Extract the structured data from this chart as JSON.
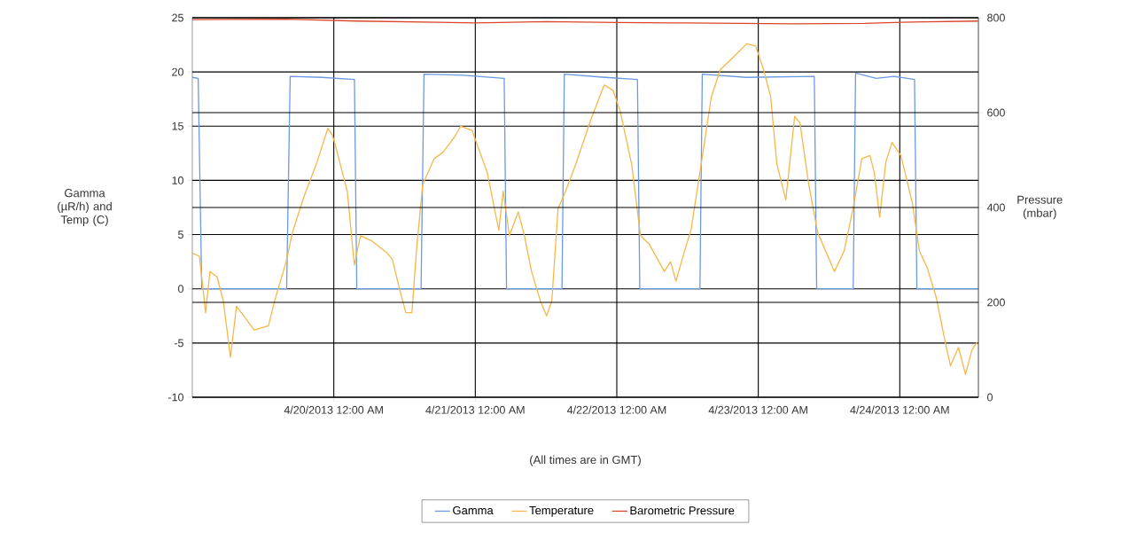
{
  "chart_data": {
    "type": "line",
    "xlabel": "(All times are in GMT)",
    "ylabel": "Gamma (µR/h) and Temp (C)",
    "y2label": "Pressure (mbar)",
    "xlim": [
      "2013-04-19T00:00",
      "2013-04-24T13:20"
    ],
    "xticks": [
      {
        "value": "2013-04-20",
        "label": "4/20/2013 12:00 AM"
      },
      {
        "value": "2013-04-21",
        "label": "4/21/2013 12:00 AM"
      },
      {
        "value": "2013-04-22",
        "label": "4/22/2013 12:00 AM"
      },
      {
        "value": "2013-04-23",
        "label": "4/23/2013 12:00 AM"
      },
      {
        "value": "2013-04-24",
        "label": "4/24/2013 12:00 AM"
      }
    ],
    "ylim": [
      -10,
      25
    ],
    "yticks": [
      -10,
      -5,
      0,
      5,
      10,
      15,
      20,
      25
    ],
    "y2lim": [
      0,
      800
    ],
    "y2ticks": [
      0,
      200,
      400,
      600,
      800
    ],
    "grid": true,
    "legend": "bottom",
    "series": [
      {
        "name": "Gamma",
        "color": "#6a9ae0",
        "x": [
          "2013-04-19T00:00",
          "2013-04-19T01:00",
          "2013-04-19T01:36",
          "2013-04-19T16:00",
          "2013-04-19T16:36",
          "2013-04-19T22:00",
          "2013-04-20T03:30",
          "2013-04-20T03:54",
          "2013-04-20T14:48",
          "2013-04-20T15:18",
          "2013-04-20T22:00",
          "2013-04-21T04:54",
          "2013-04-21T05:18",
          "2013-04-21T14:42",
          "2013-04-21T15:06",
          "2013-04-21T22:00",
          "2013-04-22T03:30",
          "2013-04-22T03:54",
          "2013-04-22T14:06",
          "2013-04-22T14:30",
          "2013-04-22T22:00",
          "2013-04-23T09:30",
          "2013-04-23T09:54",
          "2013-04-23T16:06",
          "2013-04-23T16:30",
          "2013-04-23T20:00",
          "2013-04-23T23:00",
          "2013-04-24T02:30",
          "2013-04-24T02:54",
          "2013-04-24T13:18"
        ],
        "values": [
          19.5,
          19.4,
          0,
          0,
          19.6,
          19.5,
          19.3,
          0,
          0,
          19.8,
          19.7,
          19.4,
          0,
          0,
          19.8,
          19.5,
          19.3,
          0,
          0,
          19.8,
          19.5,
          19.6,
          0,
          0,
          19.9,
          19.4,
          19.6,
          19.3,
          0,
          0
        ]
      },
      {
        "name": "Temperature",
        "color": "#f6b74a",
        "x": [
          "2013-04-19T00:00",
          "2013-04-19T01:12",
          "2013-04-19T02:15",
          "2013-04-19T03:00",
          "2013-04-19T04:12",
          "2013-04-19T05:15",
          "2013-04-19T06:28",
          "2013-04-19T07:30",
          "2013-04-19T09:00",
          "2013-04-19T10:30",
          "2013-04-19T12:55",
          "2013-04-19T13:58",
          "2013-04-19T15:55",
          "2013-04-19T16:59",
          "2013-04-19T18:56",
          "2013-04-19T21:02",
          "2013-04-19T22:59",
          "2013-04-19T23:44",
          "2013-04-20T00:11",
          "2013-04-20T02:17",
          "2013-04-20T03:29",
          "2013-04-20T04:32",
          "2013-04-20T06:30",
          "2013-04-20T09:03",
          "2013-04-20T09:57",
          "2013-04-20T11:00",
          "2013-04-20T12:13",
          "2013-04-20T13:15",
          "2013-04-20T14:01",
          "2013-04-20T15:04",
          "2013-04-20T17:01",
          "2013-04-20T18:31",
          "2013-04-20T20:28",
          "2013-04-20T21:31",
          "2013-04-20T23:28",
          "2013-04-21T02:02",
          "2013-04-21T03:59",
          "2013-04-21T04:44",
          "2013-04-21T05:47",
          "2013-04-21T07:17",
          "2013-04-21T08:20",
          "2013-04-21T09:32",
          "2013-04-21T11:02",
          "2013-04-21T12:05",
          "2013-04-21T12:59",
          "2013-04-21T14:02",
          "2013-04-21T15:06",
          "2013-04-21T17:03",
          "2013-04-21T19:36",
          "2013-04-21T21:52",
          "2013-04-21T23:22",
          "2013-04-22T00:34",
          "2013-04-22T02:31",
          "2013-04-22T04:01",
          "2013-04-22T05:31",
          "2013-04-22T08:04",
          "2013-04-22T09:07",
          "2013-04-22T10:02",
          "2013-04-22T11:23",
          "2013-04-22T12:35",
          "2013-04-22T14:32",
          "2013-04-22T16:02",
          "2013-04-22T17:32",
          "2013-04-22T19:38",
          "2013-04-22T22:02",
          "2013-04-22T23:33",
          "2013-04-23T00:54",
          "2013-04-23T02:06",
          "2013-04-23T03:09",
          "2013-04-23T04:40",
          "2013-04-23T06:10",
          "2013-04-23T07:04",
          "2013-04-23T08:34",
          "2013-04-23T10:04",
          "2013-04-23T12:55",
          "2013-04-23T14:34",
          "2013-04-23T16:04",
          "2013-04-23T17:34",
          "2013-04-23T18:56",
          "2013-04-23T19:41",
          "2013-04-23T20:35",
          "2013-04-23T21:38",
          "2013-04-23T22:41",
          "2013-04-24T00:11",
          "2013-04-24T02:08",
          "2013-04-24T03:20",
          "2013-04-24T04:41",
          "2013-04-24T06:11",
          "2013-04-24T07:42",
          "2013-04-24T08:36",
          "2013-04-24T09:57",
          "2013-04-24T11:09",
          "2013-04-24T12:12",
          "2013-04-24T13:06"
        ],
        "values": [
          3.3,
          3.0,
          -2.2,
          1.6,
          1.1,
          -1.1,
          -6.3,
          -1.6,
          -2.7,
          -3.8,
          -3.4,
          -1.1,
          2.5,
          5.2,
          8.5,
          11.5,
          14.8,
          14.2,
          13.4,
          9.0,
          2.2,
          4.9,
          4.4,
          3.3,
          2.7,
          0.3,
          -2.2,
          -2.2,
          3.5,
          9.6,
          12.0,
          12.6,
          14.0,
          15.0,
          14.6,
          10.7,
          5.4,
          9.0,
          4.9,
          7.1,
          4.9,
          1.6,
          -1.1,
          -2.5,
          -1.1,
          7.4,
          8.7,
          11.5,
          15.6,
          18.8,
          18.3,
          16.4,
          11.5,
          4.9,
          4.1,
          1.6,
          2.5,
          0.7,
          3.3,
          5.4,
          12.3,
          17.7,
          20.2,
          21.3,
          22.6,
          22.4,
          20.2,
          17.7,
          11.5,
          8.2,
          15.9,
          15.3,
          9.6,
          5.2,
          1.6,
          3.5,
          7.4,
          12.0,
          12.3,
          10.7,
          6.6,
          11.7,
          13.5,
          12.3,
          7.9,
          3.5,
          1.9,
          -0.8,
          -4.9,
          -7.1,
          -5.4,
          -7.9,
          -5.7,
          -4.9
        ]
      },
      {
        "name": "Barometric Pressure",
        "color": "#d9472b",
        "axis": "y2",
        "x": [
          "2013-04-19T00:00",
          "2013-04-19T16:00",
          "2013-04-20T04:00",
          "2013-04-21T00:00",
          "2013-04-21T12:00",
          "2013-04-22T00:00",
          "2013-04-22T12:00",
          "2013-04-23T06:00",
          "2013-04-23T18:00",
          "2013-04-24T02:00",
          "2013-04-24T13:18"
        ],
        "values": [
          796,
          797,
          793,
          789,
          792,
          790,
          789,
          787,
          788,
          791,
          793
        ]
      }
    ]
  }
}
